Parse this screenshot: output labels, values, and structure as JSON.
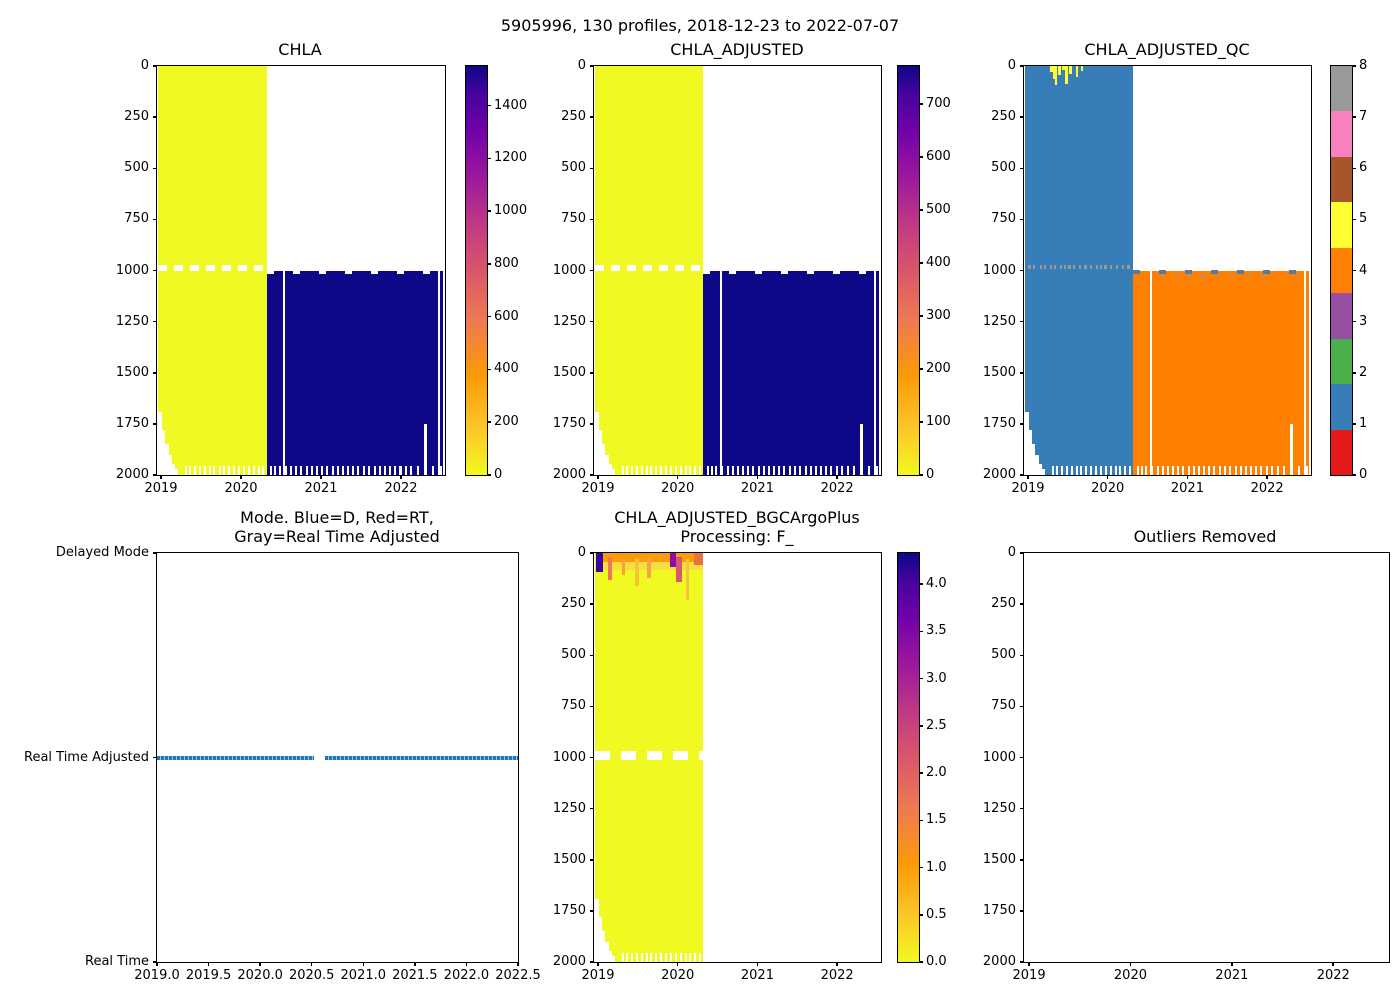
{
  "suptitle": "5905996, 130 profiles, 2018-12-23 to 2022-07-07",
  "qc_palette": [
    "#e41a1c",
    "#377eb8",
    "#4daf4a",
    "#984ea3",
    "#ff7f00",
    "#ffff33",
    "#a65628",
    "#f781bf",
    "#999999"
  ],
  "colors": {
    "plasma_low": "#f0f921",
    "plasma_high": "#0d0887",
    "qc_good_blue": "#377eb8",
    "qc_bad_orange": "#ff7f00",
    "qc_probably_bad_yellow": "#ffff33",
    "qc_gray": "#999999",
    "qc_edge_dash": "#5b7a99",
    "mode_line_blue": "#1f77b4"
  },
  "chart_data": [
    {
      "id": "chla",
      "type": "heatmap",
      "title": "CHLA",
      "x_range": [
        2018.95,
        2022.55
      ],
      "x_ticks": [
        2019,
        2020,
        2021,
        2022
      ],
      "x_tick_labels": [
        "2019",
        "2020",
        "2021",
        "2022"
      ],
      "y_range": [
        0,
        2000
      ],
      "y_ticks": [
        0,
        250,
        500,
        750,
        1000,
        1250,
        1500,
        1750,
        2000
      ],
      "y_tick_labels": [
        "0",
        "250",
        "500",
        "750",
        "1000",
        "1250",
        "1500",
        "1750",
        "2000"
      ],
      "colormap": "plasma_r",
      "vmin": 0,
      "vmax": 1550,
      "colorbar_ticks": [
        0,
        200,
        400,
        600,
        800,
        1000,
        1200,
        1400
      ],
      "colorbar_tick_labels": [
        "0",
        "200",
        "400",
        "600",
        "800",
        "1000",
        "1200",
        "1400"
      ],
      "regions": [
        {
          "label": "near-zero CHLA",
          "x0": 2018.97,
          "x1": 2020.32,
          "depth0": 0,
          "depth1": 2000,
          "value": 0
        },
        {
          "label": "high CHLA",
          "x0": 2020.32,
          "x1": 2022.53,
          "depth0": 1000,
          "depth1": 2000,
          "value": 1500
        }
      ],
      "features": {
        "gap_depth_m": 990,
        "early_profile_max_depths_m": [
          1690,
          1780,
          1850,
          1900,
          1945,
          1970
        ],
        "missing_profile_years": [
          2020.53,
          2022.46
        ],
        "shallow_profile": {
          "year": 2022.29,
          "max_depth_m": 1750
        }
      }
    },
    {
      "id": "chla_adjusted",
      "type": "heatmap",
      "title": "CHLA_ADJUSTED",
      "x_range": [
        2018.95,
        2022.55
      ],
      "x_ticks": [
        2019,
        2020,
        2021,
        2022
      ],
      "x_tick_labels": [
        "2019",
        "2020",
        "2021",
        "2022"
      ],
      "y_range": [
        0,
        2000
      ],
      "y_ticks": [
        0,
        250,
        500,
        750,
        1000,
        1250,
        1500,
        1750,
        2000
      ],
      "y_tick_labels": [
        "0",
        "250",
        "500",
        "750",
        "1000",
        "1250",
        "1500",
        "1750",
        "2000"
      ],
      "colormap": "plasma_r",
      "vmin": 0,
      "vmax": 772,
      "colorbar_ticks": [
        0,
        100,
        200,
        300,
        400,
        500,
        600,
        700
      ],
      "colorbar_tick_labels": [
        "0",
        "100",
        "200",
        "300",
        "400",
        "500",
        "600",
        "700"
      ],
      "regions": [
        {
          "label": "near-zero CHLA_ADJUSTED",
          "x0": 2018.97,
          "x1": 2020.32,
          "depth0": 0,
          "depth1": 2000,
          "value": 0
        },
        {
          "label": "high CHLA_ADJUSTED",
          "x0": 2020.32,
          "x1": 2022.53,
          "depth0": 1000,
          "depth1": 2000,
          "value": 750
        }
      ],
      "features": {
        "gap_depth_m": 990,
        "early_profile_max_depths_m": [
          1690,
          1780,
          1850,
          1900,
          1945,
          1970
        ],
        "missing_profile_years": [
          2020.53,
          2022.46
        ],
        "shallow_profile": {
          "year": 2022.29,
          "max_depth_m": 1750
        }
      }
    },
    {
      "id": "qc",
      "type": "heatmap",
      "title": "CHLA_ADJUSTED_QC",
      "x_range": [
        2018.95,
        2022.55
      ],
      "x_ticks": [
        2019,
        2020,
        2021,
        2022
      ],
      "x_tick_labels": [
        "2019",
        "2020",
        "2021",
        "2022"
      ],
      "y_range": [
        0,
        2000
      ],
      "y_ticks": [
        0,
        250,
        500,
        750,
        1000,
        1250,
        1500,
        1750,
        2000
      ],
      "y_tick_labels": [
        "0",
        "250",
        "500",
        "750",
        "1000",
        "1250",
        "1500",
        "1750",
        "2000"
      ],
      "colormap": "Set1-discrete",
      "vmin": 0,
      "vmax": 8,
      "colorbar_ticks": [
        0,
        1,
        2,
        3,
        4,
        5,
        6,
        7,
        8
      ],
      "colorbar_tick_labels": [
        "0",
        "1",
        "2",
        "3",
        "4",
        "5",
        "6",
        "7",
        "8"
      ],
      "regions": [
        {
          "label": "QC 1 (good)",
          "x0": 2018.97,
          "x1": 2020.32,
          "depth0": 0,
          "depth1": 2000,
          "value": 1
        },
        {
          "label": "QC 4 (bad)",
          "x0": 2020.32,
          "x1": 2022.53,
          "depth0": 1000,
          "depth1": 2000,
          "value": 4
        }
      ],
      "features": {
        "gap_depth_m": 990,
        "early_profile_max_depths_m": [
          1690,
          1780,
          1850,
          1900,
          1945,
          1970
        ],
        "missing_profile_years": [
          2020.53,
          2022.46
        ],
        "shallow_profile": {
          "year": 2022.29,
          "max_depth_m": 1750
        },
        "qc8_marks_depth_m": 990,
        "surface_qc5_patches": [
          {
            "x0": 2019.27,
            "x1": 2019.31,
            "depth1": 30
          },
          {
            "x0": 2019.31,
            "x1": 2019.34,
            "depth1": 65
          },
          {
            "x0": 2019.34,
            "x1": 2019.37,
            "depth1": 95
          },
          {
            "x0": 2019.38,
            "x1": 2019.41,
            "depth1": 45
          },
          {
            "x0": 2019.43,
            "x1": 2019.46,
            "depth1": 20
          },
          {
            "x0": 2019.47,
            "x1": 2019.5,
            "depth1": 90
          },
          {
            "x0": 2019.52,
            "x1": 2019.55,
            "depth1": 40
          },
          {
            "x0": 2019.6,
            "x1": 2019.63,
            "depth1": 55
          },
          {
            "x0": 2019.66,
            "x1": 2019.69,
            "depth1": 25
          }
        ]
      }
    },
    {
      "id": "mode",
      "type": "categorical-line",
      "title": "Mode. Blue=D, Red=RT,\nGray=Real Time Adjusted",
      "x_range": [
        2019.0,
        2022.5
      ],
      "x_ticks": [
        2019.0,
        2019.5,
        2020.0,
        2020.5,
        2021.0,
        2021.5,
        2022.0,
        2022.5
      ],
      "x_tick_labels": [
        "2019.0",
        "2019.5",
        "2020.0",
        "2020.5",
        "2021.0",
        "2021.5",
        "2022.0",
        "2022.5"
      ],
      "y_categories": [
        "Delayed Mode",
        "Real Time Adjusted",
        "Real Time"
      ],
      "series": [
        {
          "name": "data mode",
          "category": "Real Time Adjusted",
          "x0": 2019.0,
          "x1": 2022.5,
          "gap": [
            2020.52,
            2020.63
          ]
        }
      ]
    },
    {
      "id": "bgc",
      "type": "heatmap",
      "title": "CHLA_ADJUSTED_BGCArgoPlus\nProcessing: F_",
      "x_range": [
        2018.95,
        2022.55
      ],
      "x_ticks": [
        2019,
        2020,
        2021,
        2022
      ],
      "x_tick_labels": [
        "2019",
        "2020",
        "2021",
        "2022"
      ],
      "y_range": [
        0,
        2000
      ],
      "y_ticks": [
        0,
        250,
        500,
        750,
        1000,
        1250,
        1500,
        1750,
        2000
      ],
      "y_tick_labels": [
        "0",
        "250",
        "500",
        "750",
        "1000",
        "1250",
        "1500",
        "1750",
        "2000"
      ],
      "colormap": "plasma_r",
      "vmin": 0,
      "vmax": 4.33,
      "colorbar_ticks": [
        0,
        0.5,
        1.0,
        1.5,
        2.0,
        2.5,
        3.0,
        3.5,
        4.0
      ],
      "colorbar_tick_labels": [
        "0.0",
        "0.5",
        "1.0",
        "1.5",
        "2.0",
        "2.5",
        "3.0",
        "3.5",
        "4.0"
      ],
      "regions": [
        {
          "label": "near-zero at depth",
          "x0": 2018.97,
          "x1": 2020.32,
          "depth0": 0,
          "depth1": 2000,
          "value": 0
        }
      ],
      "features": {
        "gap_depth_m": 990,
        "early_profile_max_depths_m": [
          1690,
          1780,
          1850,
          1900,
          1945,
          1970
        ],
        "surface_patches": [
          {
            "x0": 2018.97,
            "x1": 2019.06,
            "d0": 0,
            "d1": 95,
            "color": "#3b049a"
          },
          {
            "x0": 2019.06,
            "x1": 2020.32,
            "d0": 0,
            "d1": 42,
            "color": "#fb9b06"
          },
          {
            "x0": 2019.06,
            "x1": 2020.32,
            "d0": 42,
            "d1": 85,
            "color": "#f8df3f"
          },
          {
            "x0": 2019.12,
            "x1": 2019.17,
            "d0": 20,
            "d1": 130,
            "color": "#ed7953"
          },
          {
            "x0": 2019.3,
            "x1": 2019.34,
            "d0": 30,
            "d1": 110,
            "color": "#f9a242"
          },
          {
            "x0": 2019.47,
            "x1": 2019.51,
            "d0": 30,
            "d1": 160,
            "color": "#f4c53c"
          },
          {
            "x0": 2019.62,
            "x1": 2019.66,
            "d0": 25,
            "d1": 120,
            "color": "#f9a242"
          },
          {
            "x0": 2019.9,
            "x1": 2019.98,
            "d0": 0,
            "d1": 70,
            "color": "#8f0da4"
          },
          {
            "x0": 2019.98,
            "x1": 2020.05,
            "d0": 20,
            "d1": 140,
            "color": "#d8576b"
          },
          {
            "x0": 2020.1,
            "x1": 2020.14,
            "d0": 30,
            "d1": 230,
            "color": "#f4c53c"
          },
          {
            "x0": 2020.2,
            "x1": 2020.32,
            "d0": 0,
            "d1": 60,
            "color": "#e8713c"
          }
        ]
      }
    },
    {
      "id": "outliers",
      "type": "heatmap",
      "title": "Outliers Removed",
      "x_range": [
        2018.95,
        2022.55
      ],
      "x_ticks": [
        2019,
        2020,
        2021,
        2022
      ],
      "x_tick_labels": [
        "2019",
        "2020",
        "2021",
        "2022"
      ],
      "y_range": [
        0,
        2000
      ],
      "y_ticks": [
        0,
        250,
        500,
        750,
        1000,
        1250,
        1500,
        1750,
        2000
      ],
      "y_tick_labels": [
        "0",
        "250",
        "500",
        "750",
        "1000",
        "1250",
        "1500",
        "1750",
        "2000"
      ],
      "regions": []
    }
  ]
}
